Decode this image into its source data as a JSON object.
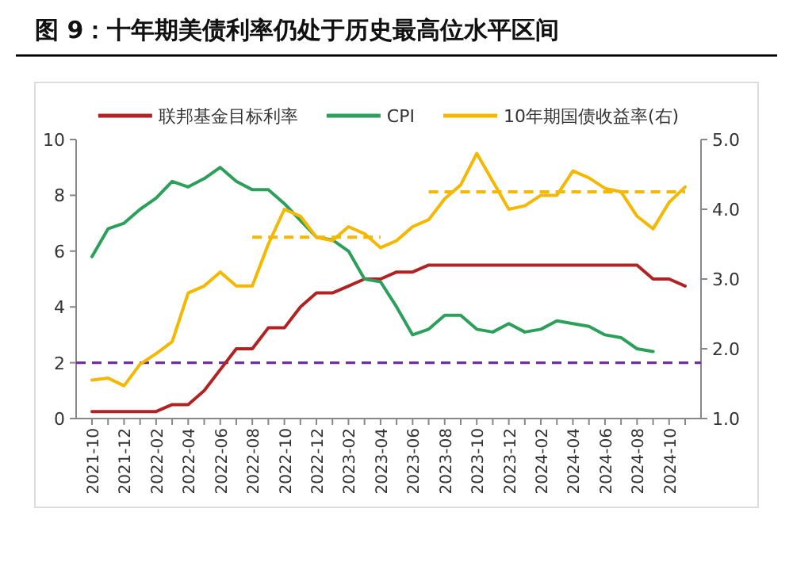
{
  "chart_data": {
    "type": "line",
    "title": "图 9：十年期美债利率仍处于历史最高位水平区间",
    "categories": [
      "2021-10",
      null,
      "2021-12",
      null,
      "2022-02",
      null,
      "2022-04",
      null,
      "2022-06",
      null,
      "2022-08",
      null,
      "2022-10",
      null,
      "2022-12",
      null,
      "2023-02",
      null,
      "2023-04",
      null,
      "2023-06",
      null,
      "2023-08",
      null,
      "2023-10",
      null,
      "2023-12",
      null,
      "2024-02",
      null,
      "2024-04",
      null,
      "2024-06",
      null,
      "2024-08",
      null,
      "2024-10",
      null
    ],
    "series": [
      {
        "name": "联邦基金目标利率",
        "color": "#b22222",
        "values": [
          0.25,
          0.25,
          0.25,
          0.25,
          0.25,
          0.5,
          0.5,
          1.0,
          1.75,
          2.5,
          2.5,
          3.25,
          3.25,
          4.0,
          4.5,
          4.5,
          4.75,
          5.0,
          5.0,
          5.25,
          5.25,
          5.5,
          5.5,
          5.5,
          5.5,
          5.5,
          5.5,
          5.5,
          5.5,
          5.5,
          5.5,
          5.5,
          5.5,
          5.5,
          5.5,
          5.0,
          5.0,
          4.75
        ]
      },
      {
        "name": "CPI",
        "color": "#2ca05a",
        "values": [
          5.8,
          6.8,
          7.0,
          7.5,
          7.9,
          8.5,
          8.3,
          8.6,
          9.0,
          8.5,
          8.2,
          8.2,
          7.7,
          7.1,
          6.5,
          6.4,
          6.0,
          5.0,
          4.9,
          4.0,
          3.0,
          3.2,
          3.7,
          3.7,
          3.2,
          3.1,
          3.4,
          3.1,
          3.2,
          3.5,
          3.4,
          3.3,
          3.0,
          2.9,
          2.5,
          2.4,
          null,
          null
        ]
      },
      {
        "name": "10年期国债收益率(右)",
        "color": "#f5b800",
        "axis": "y2",
        "values": [
          1.55,
          1.58,
          1.47,
          1.78,
          1.93,
          2.1,
          2.8,
          2.9,
          3.1,
          2.9,
          2.9,
          3.5,
          4.0,
          3.9,
          3.6,
          3.55,
          3.75,
          3.65,
          3.45,
          3.55,
          3.75,
          3.85,
          4.15,
          4.35,
          4.8,
          4.4,
          4.0,
          4.05,
          4.2,
          4.2,
          4.55,
          4.45,
          4.3,
          4.25,
          3.9,
          3.72,
          4.1,
          4.32
        ]
      },
      {
        "color": "#f5b800",
        "axis": "y2",
        "line_style": "dashed",
        "values": [
          null,
          null,
          null,
          null,
          null,
          null,
          null,
          null,
          null,
          null,
          3.6,
          3.6,
          3.6,
          3.6,
          3.6,
          3.6,
          3.6,
          3.6,
          3.6,
          null,
          null,
          null,
          null,
          null,
          null,
          null,
          null,
          null,
          null,
          null,
          null,
          null,
          null,
          null,
          null,
          null,
          null,
          null
        ]
      },
      {
        "color": "#f5b800",
        "axis": "y2",
        "line_style": "dashed",
        "values": [
          null,
          null,
          null,
          null,
          null,
          null,
          null,
          null,
          null,
          null,
          null,
          null,
          null,
          null,
          null,
          null,
          null,
          null,
          null,
          null,
          null,
          4.25,
          4.25,
          4.25,
          4.25,
          4.25,
          4.25,
          4.25,
          4.25,
          4.25,
          4.25,
          4.25,
          4.25,
          4.25,
          4.25,
          4.25,
          4.25,
          4.25
        ]
      }
    ],
    "ylim": [
      0,
      10
    ],
    "yticks": [
      0,
      2,
      4,
      6,
      8,
      10
    ],
    "y2lim": [
      1,
      5
    ],
    "y2ticks": [
      {
        "value": 1,
        "label": "1.0"
      },
      {
        "value": 2,
        "label": "2.0"
      },
      {
        "value": 3,
        "label": "3.0"
      },
      {
        "value": 4,
        "label": "4.0"
      },
      {
        "value": 5,
        "label": "5.0"
      }
    ],
    "ref_lines": [
      {
        "axis": "y",
        "value": 2,
        "color": "#7030a0",
        "line_style": "dashed"
      }
    ],
    "legend": "top",
    "grid": false
  }
}
